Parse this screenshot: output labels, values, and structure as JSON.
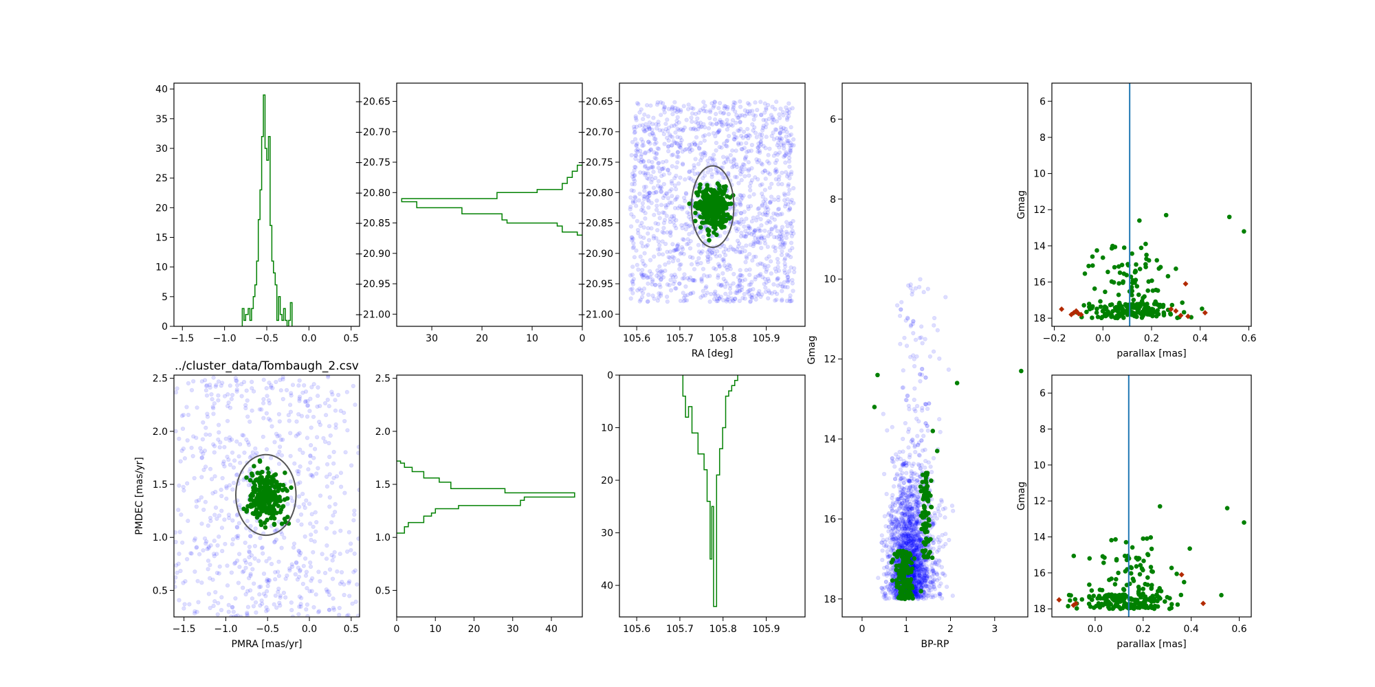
{
  "chart_data": [
    {
      "id": "pm_hist_x",
      "type": "histogram",
      "title": "",
      "xlabel": "",
      "ylabel": "",
      "xlim": [
        -1.6,
        0.6
      ],
      "ylim": [
        0,
        41
      ],
      "xticks": [
        -1.5,
        -1.0,
        -0.5,
        0.0,
        0.5
      ],
      "xtick_labels": [
        "−1.5",
        "−1.0",
        "−0.5",
        "0.0",
        "0.5"
      ],
      "yticks": [
        0,
        5,
        10,
        15,
        20,
        25,
        30,
        35,
        40
      ],
      "ytick_labels": [
        "0",
        "5",
        "10",
        "15",
        "20",
        "25",
        "30",
        "35",
        "40"
      ],
      "step": [
        [
          -0.79,
          0
        ],
        [
          -0.79,
          3
        ],
        [
          -0.77,
          3
        ],
        [
          -0.77,
          1
        ],
        [
          -0.75,
          1
        ],
        [
          -0.75,
          2
        ],
        [
          -0.72,
          2
        ],
        [
          -0.72,
          3
        ],
        [
          -0.7,
          3
        ],
        [
          -0.7,
          1
        ],
        [
          -0.68,
          1
        ],
        [
          -0.68,
          3
        ],
        [
          -0.66,
          3
        ],
        [
          -0.66,
          5
        ],
        [
          -0.64,
          5
        ],
        [
          -0.64,
          7
        ],
        [
          -0.62,
          7
        ],
        [
          -0.62,
          11
        ],
        [
          -0.6,
          11
        ],
        [
          -0.6,
          18
        ],
        [
          -0.58,
          18
        ],
        [
          -0.58,
          23
        ],
        [
          -0.56,
          23
        ],
        [
          -0.56,
          32
        ],
        [
          -0.54,
          32
        ],
        [
          -0.54,
          39
        ],
        [
          -0.52,
          39
        ],
        [
          -0.52,
          30
        ],
        [
          -0.5,
          30
        ],
        [
          -0.5,
          28
        ],
        [
          -0.48,
          28
        ],
        [
          -0.48,
          32
        ],
        [
          -0.46,
          32
        ],
        [
          -0.46,
          17
        ],
        [
          -0.44,
          17
        ],
        [
          -0.44,
          11
        ],
        [
          -0.42,
          11
        ],
        [
          -0.42,
          9
        ],
        [
          -0.4,
          9
        ],
        [
          -0.4,
          7
        ],
        [
          -0.38,
          7
        ],
        [
          -0.38,
          1
        ],
        [
          -0.36,
          1
        ],
        [
          -0.36,
          5
        ],
        [
          -0.34,
          5
        ],
        [
          -0.34,
          2
        ],
        [
          -0.32,
          2
        ],
        [
          -0.32,
          1
        ],
        [
          -0.3,
          1
        ],
        [
          -0.3,
          3
        ],
        [
          -0.28,
          3
        ],
        [
          -0.28,
          1
        ],
        [
          -0.26,
          1
        ],
        [
          -0.26,
          0
        ],
        [
          -0.24,
          0
        ],
        [
          -0.24,
          1
        ],
        [
          -0.22,
          1
        ],
        [
          -0.22,
          4
        ],
        [
          -0.2,
          4
        ],
        [
          -0.2,
          0
        ]
      ]
    },
    {
      "id": "ra_dec_hist",
      "type": "histogram",
      "orientation": "horizontal",
      "title": "",
      "xlabel": "",
      "ylabel": "",
      "xlim": [
        37,
        0
      ],
      "ylim": [
        -21.02,
        -20.62
      ],
      "xticks": [
        30,
        20,
        10,
        0
      ],
      "xtick_labels": [
        "30",
        "20",
        "10",
        "0"
      ],
      "yticks": [
        -20.65,
        -20.7,
        -20.75,
        -20.8,
        -20.85,
        -20.9,
        -20.95,
        -21.0
      ],
      "ytick_labels": [
        "−20.65",
        "−20.70",
        "−20.75",
        "−20.80",
        "−20.85",
        "−20.90",
        "−20.95",
        "−21.00"
      ],
      "step": [
        [
          0,
          -20.755
        ],
        [
          1,
          -20.755
        ],
        [
          1,
          -20.765
        ],
        [
          2,
          -20.765
        ],
        [
          2,
          -20.775
        ],
        [
          3,
          -20.775
        ],
        [
          3,
          -20.785
        ],
        [
          4,
          -20.785
        ],
        [
          4,
          -20.795
        ],
        [
          9,
          -20.795
        ],
        [
          9,
          -20.8
        ],
        [
          17,
          -20.8
        ],
        [
          17,
          -20.81
        ],
        [
          36,
          -20.81
        ],
        [
          36,
          -20.815
        ],
        [
          33,
          -20.815
        ],
        [
          33,
          -20.825
        ],
        [
          24,
          -20.825
        ],
        [
          24,
          -20.835
        ],
        [
          16,
          -20.835
        ],
        [
          16,
          -20.845
        ],
        [
          15,
          -20.845
        ],
        [
          15,
          -20.85
        ],
        [
          5,
          -20.85
        ],
        [
          5,
          -20.855
        ],
        [
          4,
          -20.855
        ],
        [
          4,
          -20.865
        ],
        [
          1,
          -20.865
        ],
        [
          1,
          -20.87
        ],
        [
          0,
          -20.87
        ]
      ]
    },
    {
      "id": "sky",
      "type": "scatter",
      "title": "",
      "xlabel": "RA [deg]",
      "ylabel": "",
      "xlim": [
        105.56,
        105.99
      ],
      "ylim": [
        -21.02,
        -20.62
      ],
      "xticks": [
        105.6,
        105.7,
        105.8,
        105.9
      ],
      "xtick_labels": [
        "105.6",
        "105.7",
        "105.8",
        "105.9"
      ],
      "yticks": [
        -20.65,
        -20.7,
        -20.75,
        -20.8,
        -20.85,
        -20.9,
        -20.95,
        -21.0
      ],
      "ytick_labels": [
        "−20.65",
        "−20.70",
        "−20.75",
        "−20.80",
        "−20.85",
        "−20.90",
        "−20.95",
        "−21.00"
      ],
      "bg_box": [
        105.585,
        105.965,
        -20.98,
        -20.65
      ],
      "bg_count": 1500,
      "members_center": [
        105.776,
        -20.825
      ],
      "members_sigma": [
        0.018,
        0.017
      ],
      "members_count": 300,
      "ellipse": {
        "cx": 105.776,
        "cy": -20.823,
        "rx": 0.049,
        "ry": 0.067
      }
    },
    {
      "id": "cmd",
      "type": "scatter",
      "title": "",
      "xlabel": "BP-RP",
      "ylabel": "Gmag",
      "xlim": [
        -0.45,
        3.75
      ],
      "ylim": [
        18.45,
        5.1
      ],
      "xticks": [
        0,
        1,
        2,
        3
      ],
      "xtick_labels": [
        "0",
        "1",
        "2",
        "3"
      ],
      "yticks": [
        6,
        8,
        10,
        12,
        14,
        16,
        18
      ],
      "ytick_labels": [
        "6",
        "8",
        "10",
        "12",
        "14",
        "16",
        "18"
      ],
      "bg_count": 2200,
      "members_count": 230,
      "bright_members": [
        [
          0.35,
          12.4
        ],
        [
          0.28,
          13.2
        ],
        [
          2.15,
          12.6
        ],
        [
          3.6,
          12.3
        ],
        [
          1.6,
          13.8
        ],
        [
          1.7,
          14.3
        ]
      ]
    },
    {
      "id": "par_top",
      "type": "scatter",
      "title": "",
      "xlabel": "parallax [mas]",
      "ylabel": "Gmag",
      "xlim": [
        -0.21,
        0.61
      ],
      "ylim": [
        18.45,
        5
      ],
      "xticks": [
        -0.2,
        0.0,
        0.2,
        0.4,
        0.6
      ],
      "xtick_labels": [
        "−0.2",
        "0.0",
        "0.2",
        "0.4",
        "0.6"
      ],
      "yticks": [
        6,
        8,
        10,
        12,
        14,
        16,
        18
      ],
      "ytick_labels": [
        "6",
        "8",
        "10",
        "12",
        "14",
        "16",
        "18"
      ],
      "vline": 0.11,
      "members_count": 240,
      "bright_members": [
        [
          0.15,
          12.6
        ],
        [
          0.26,
          12.3
        ],
        [
          0.52,
          12.4
        ],
        [
          0.58,
          13.2
        ]
      ],
      "rejected": [
        [
          -0.17,
          17.5
        ],
        [
          -0.13,
          17.8
        ],
        [
          -0.12,
          17.7
        ],
        [
          -0.11,
          17.6
        ],
        [
          -0.1,
          17.75
        ],
        [
          -0.09,
          17.8
        ],
        [
          0.28,
          17.5
        ],
        [
          0.3,
          17.6
        ],
        [
          0.32,
          17.85
        ],
        [
          0.34,
          16.1
        ],
        [
          0.35,
          17.9
        ],
        [
          0.42,
          17.7
        ]
      ]
    },
    {
      "id": "pm_scatter",
      "type": "scatter",
      "title": "../cluster_data/Tombaugh_2.csv",
      "xlabel": "PMRA [mas/yr]",
      "ylabel": "PMDEC [mas/yr]",
      "xlim": [
        -1.62,
        0.6
      ],
      "ylim": [
        0.25,
        2.53
      ],
      "xticks": [
        -1.5,
        -1.0,
        -0.5,
        0.0,
        0.5
      ],
      "xtick_labels": [
        "−1.5",
        "−1.0",
        "−0.5",
        "0.0",
        "0.5"
      ],
      "yticks": [
        0.5,
        1.0,
        1.5,
        2.0,
        2.5
      ],
      "ytick_labels": [
        "0.5",
        "1.0",
        "1.5",
        "2.0",
        "2.5"
      ],
      "bg_count": 800,
      "members_center": [
        -0.52,
        1.38
      ],
      "members_sigma": [
        0.1,
        0.12
      ],
      "members_count": 250,
      "ellipse": {
        "cx": -0.52,
        "cy": 1.4,
        "rx": 0.36,
        "ry": 0.38
      }
    },
    {
      "id": "pm_hist_y",
      "type": "histogram",
      "orientation": "horizontal",
      "title": "",
      "xlabel": "",
      "ylabel": "",
      "xlim": [
        0,
        48
      ],
      "ylim": [
        0.25,
        2.53
      ],
      "xticks": [
        0,
        10,
        20,
        30,
        40
      ],
      "xtick_labels": [
        "0",
        "10",
        "20",
        "30",
        "40"
      ],
      "yticks": [
        0.5,
        1.0,
        1.5,
        2.0,
        2.5
      ],
      "ytick_labels": [
        "0.5",
        "1.0",
        "1.5",
        "2.0",
        "2.5"
      ],
      "step": [
        [
          0,
          1.04
        ],
        [
          2,
          1.04
        ],
        [
          2,
          1.1
        ],
        [
          3,
          1.1
        ],
        [
          3,
          1.14
        ],
        [
          7,
          1.14
        ],
        [
          7,
          1.2
        ],
        [
          9,
          1.2
        ],
        [
          9,
          1.23
        ],
        [
          10,
          1.23
        ],
        [
          10,
          1.27
        ],
        [
          16,
          1.27
        ],
        [
          16,
          1.3
        ],
        [
          32,
          1.3
        ],
        [
          32,
          1.35
        ],
        [
          33,
          1.35
        ],
        [
          33,
          1.38
        ],
        [
          46,
          1.38
        ],
        [
          46,
          1.42
        ],
        [
          28,
          1.42
        ],
        [
          28,
          1.46
        ],
        [
          14,
          1.46
        ],
        [
          14,
          1.52
        ],
        [
          11,
          1.52
        ],
        [
          11,
          1.56
        ],
        [
          7,
          1.56
        ],
        [
          7,
          1.62
        ],
        [
          4,
          1.62
        ],
        [
          4,
          1.66
        ],
        [
          2,
          1.66
        ],
        [
          2,
          1.7
        ],
        [
          1,
          1.7
        ],
        [
          1,
          1.72
        ],
        [
          0,
          1.72
        ]
      ]
    },
    {
      "id": "ra_hist",
      "type": "histogram",
      "title": "",
      "xlabel": "",
      "ylabel": "",
      "xlim": [
        105.56,
        105.99
      ],
      "ylim": [
        46,
        0
      ],
      "xticks": [
        105.6,
        105.7,
        105.8,
        105.9
      ],
      "xtick_labels": [
        "105.6",
        "105.7",
        "105.8",
        "105.9"
      ],
      "yticks": [
        0,
        10,
        20,
        30,
        40
      ],
      "ytick_labels": [
        "0",
        "10",
        "20",
        "30",
        "40"
      ],
      "step": [
        [
          105.707,
          0
        ],
        [
          105.707,
          4
        ],
        [
          105.713,
          4
        ],
        [
          105.713,
          8
        ],
        [
          105.72,
          8
        ],
        [
          105.72,
          6
        ],
        [
          105.728,
          6
        ],
        [
          105.728,
          11
        ],
        [
          105.742,
          11
        ],
        [
          105.742,
          15
        ],
        [
          105.756,
          15
        ],
        [
          105.756,
          18
        ],
        [
          105.763,
          18
        ],
        [
          105.763,
          24
        ],
        [
          105.77,
          24
        ],
        [
          105.77,
          35
        ],
        [
          105.774,
          35
        ],
        [
          105.774,
          25
        ],
        [
          105.778,
          25
        ],
        [
          105.778,
          44
        ],
        [
          105.785,
          44
        ],
        [
          105.785,
          19
        ],
        [
          105.792,
          19
        ],
        [
          105.792,
          14
        ],
        [
          105.799,
          14
        ],
        [
          105.799,
          10
        ],
        [
          105.806,
          10
        ],
        [
          105.806,
          4
        ],
        [
          105.813,
          4
        ],
        [
          105.813,
          3
        ],
        [
          105.82,
          3
        ],
        [
          105.82,
          2
        ],
        [
          105.827,
          2
        ],
        [
          105.827,
          1
        ],
        [
          105.834,
          1
        ],
        [
          105.834,
          0
        ]
      ]
    },
    {
      "id": "par_bottom",
      "type": "scatter",
      "title": "",
      "xlabel": "parallax [mas]",
      "ylabel": "Gmag",
      "xlim": [
        -0.18,
        0.65
      ],
      "ylim": [
        18.45,
        5
      ],
      "xticks": [
        0.0,
        0.2,
        0.4,
        0.6
      ],
      "xtick_labels": [
        "0.0",
        "0.2",
        "0.4",
        "0.6"
      ],
      "yticks": [
        6,
        8,
        10,
        12,
        14,
        16,
        18
      ],
      "ytick_labels": [
        "6",
        "8",
        "10",
        "12",
        "14",
        "16",
        "18"
      ],
      "vline": 0.14,
      "members_count": 240,
      "bright_members": [
        [
          0.27,
          12.3
        ],
        [
          0.55,
          12.4
        ],
        [
          0.62,
          13.2
        ]
      ],
      "rejected": [
        [
          -0.15,
          17.5
        ],
        [
          -0.09,
          17.8
        ],
        [
          -0.08,
          17.7
        ],
        [
          0.36,
          16.1
        ],
        [
          0.45,
          17.7
        ]
      ]
    }
  ]
}
